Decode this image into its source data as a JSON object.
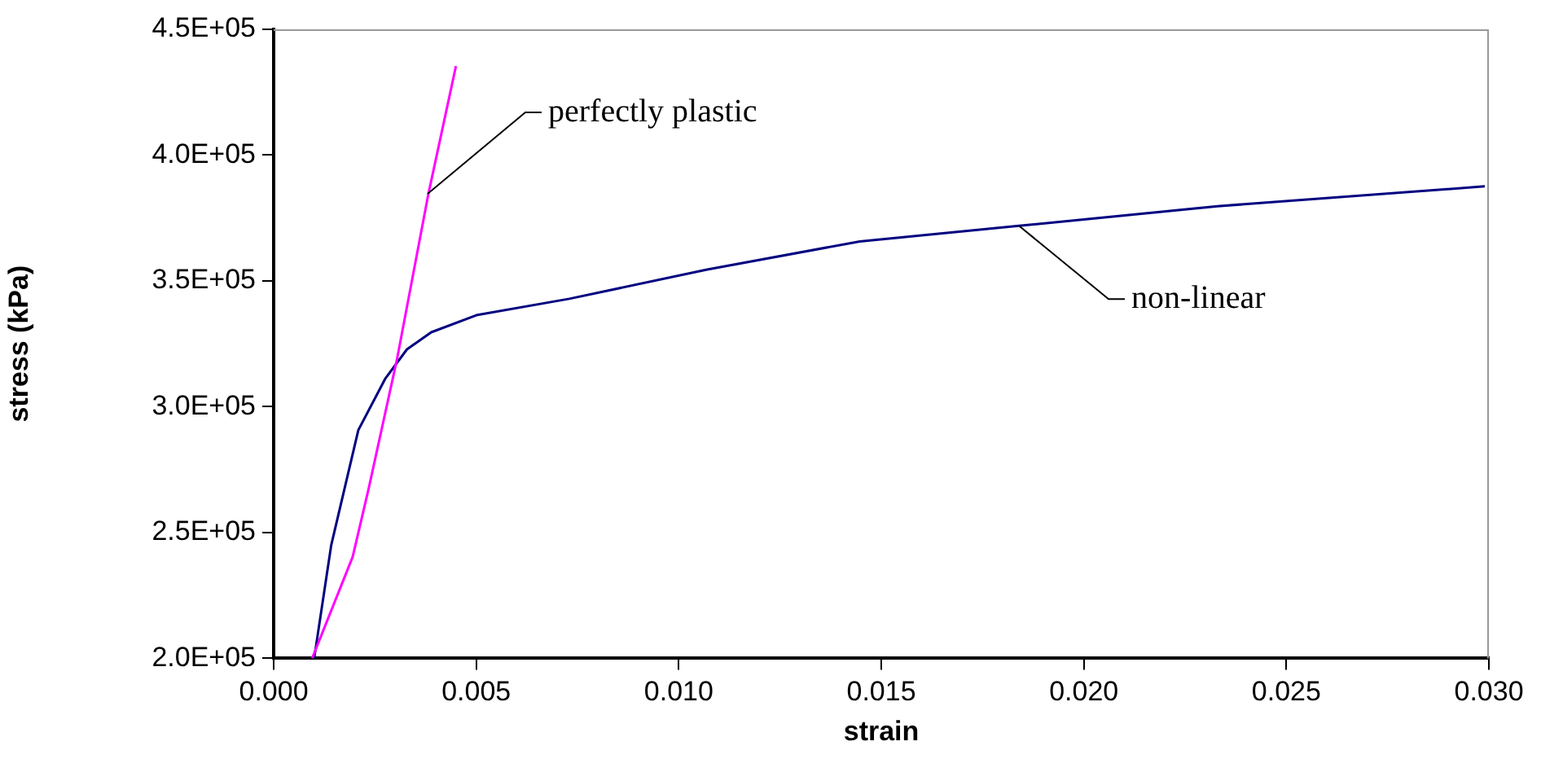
{
  "chart_data": {
    "type": "line",
    "xlabel": "strain",
    "ylabel": "stress (kPa)",
    "series": [
      {
        "color": "#ff00ff",
        "x": [
          0.00095,
          0.00195,
          0.00235,
          0.00305,
          0.00382,
          0.0045
        ],
        "values": [
          200000,
          240300,
          267800,
          319300,
          384600,
          435400
        ]
      },
      {
        "color": "#000080",
        "x": [
          0.001,
          0.00142,
          0.00209,
          0.00276,
          0.00329,
          0.00389,
          0.00503,
          0.0073,
          0.0107,
          0.01447,
          0.0184,
          0.0233,
          0.0299
        ],
        "values": [
          200000,
          244900,
          290700,
          311300,
          322800,
          329600,
          336500,
          342900,
          354500,
          365700,
          371900,
          379700,
          387600
        ]
      }
    ],
    "xlim": [
      0,
      0.03
    ],
    "xticks": [
      {
        "value": 0,
        "label": "0.000"
      },
      {
        "value": 0.005,
        "label": "0.005"
      },
      {
        "value": 0.01,
        "label": "0.010"
      },
      {
        "value": 0.015,
        "label": "0.015"
      },
      {
        "value": 0.02,
        "label": "0.020"
      },
      {
        "value": 0.025,
        "label": "0.025"
      },
      {
        "value": 0.03,
        "label": "0.030"
      }
    ],
    "ylim": [
      200000,
      450000
    ],
    "yticks": [
      {
        "value": 200000,
        "label": "2.0E+05"
      },
      {
        "value": 250000,
        "label": "2.5E+05"
      },
      {
        "value": 300000,
        "label": "3.0E+05"
      },
      {
        "value": 350000,
        "label": "3.5E+05"
      },
      {
        "value": 400000,
        "label": "4.0E+05"
      },
      {
        "value": 450000,
        "label": "4.5E+05"
      }
    ],
    "annotations": [
      {
        "text": "perfectly plastic",
        "x": 0.0038,
        "y": 384600
      },
      {
        "text": "non-linear",
        "x": 0.0184,
        "y": 371900
      }
    ],
    "grid": false,
    "legend": false,
    "marker": "none",
    "line_style": "solid"
  }
}
